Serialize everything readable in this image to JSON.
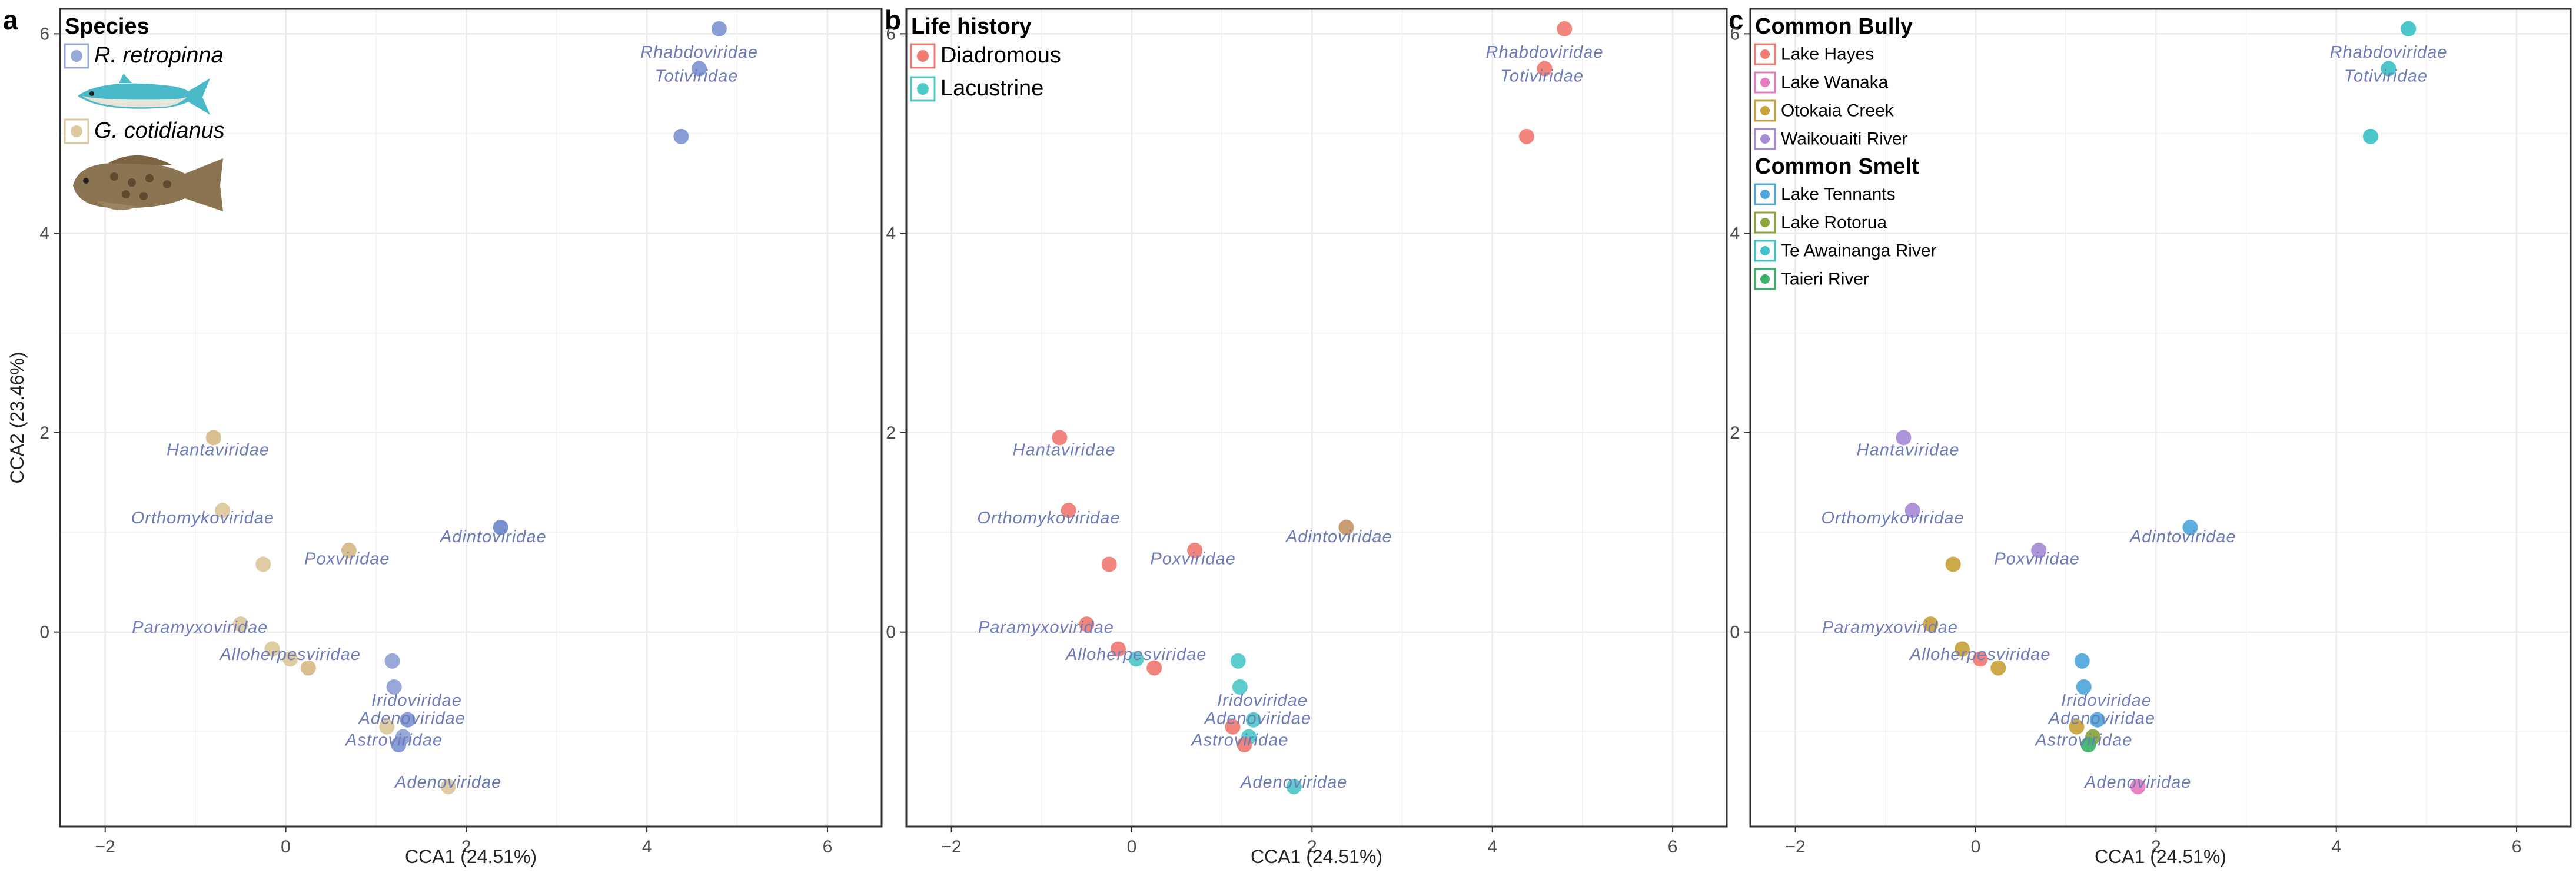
{
  "colors": {
    "label": "#6d7bb8",
    "grid": "#ebebeb",
    "axis_text": "#4d4d4d"
  },
  "panel_letters": [
    "a",
    "b",
    "c"
  ],
  "chart_data": [
    {
      "type": "scatter",
      "panel": "a",
      "xlabel": "CCA1 (24.51%)",
      "ylabel": "CCA2 (23.46%)",
      "xlim": [
        -2.5,
        6.6
      ],
      "ylim": [
        -1.95,
        6.25
      ],
      "xticks": [
        -2,
        0,
        2,
        4,
        6
      ],
      "yticks": [
        0,
        2,
        4,
        6
      ],
      "grid": true,
      "legend": {
        "placement": "top-left",
        "groups": [
          {
            "title": "Species",
            "entries": [
              {
                "label": "R. retropinna",
                "italic": true,
                "color": "#97a9d8",
                "icon": "smelt-fish-icon"
              },
              {
                "label": "G. cotidianus",
                "italic": true,
                "color": "#dcc89a",
                "icon": "bully-fish-icon"
              }
            ]
          }
        ]
      },
      "points": [
        {
          "x": 4.8,
          "y": 6.05,
          "color": "#7f95d3"
        },
        {
          "x": 4.58,
          "y": 5.65,
          "color": "#7f95d3"
        },
        {
          "x": 4.38,
          "y": 4.97,
          "color": "#7f95d3"
        },
        {
          "x": 2.38,
          "y": 1.05,
          "color": "#6f88cc"
        },
        {
          "x": -0.8,
          "y": 1.95,
          "color": "#d6b886"
        },
        {
          "x": -0.7,
          "y": 1.22,
          "color": "#dcc89a"
        },
        {
          "x": -0.25,
          "y": 0.68,
          "color": "#dcc89a"
        },
        {
          "x": 0.7,
          "y": 0.82,
          "color": "#d6b886"
        },
        {
          "x": -0.5,
          "y": 0.08,
          "color": "#dcc89a"
        },
        {
          "x": -0.15,
          "y": -0.17,
          "color": "#dcc89a"
        },
        {
          "x": 0.05,
          "y": -0.27,
          "color": "#dcc89a"
        },
        {
          "x": 0.25,
          "y": -0.36,
          "color": "#d6b886"
        },
        {
          "x": 1.18,
          "y": -0.29,
          "color": "#8fa2d6"
        },
        {
          "x": 1.2,
          "y": -0.55,
          "color": "#8fa2d6"
        },
        {
          "x": 1.35,
          "y": -0.88,
          "color": "#7f95d3"
        },
        {
          "x": 1.12,
          "y": -0.95,
          "color": "#dcc89a"
        },
        {
          "x": 1.3,
          "y": -1.05,
          "color": "#8fa2d6"
        },
        {
          "x": 1.25,
          "y": -1.13,
          "color": "#7f95d3"
        },
        {
          "x": 1.8,
          "y": -1.55,
          "color": "#dcc89a"
        }
      ],
      "labels": [
        {
          "text": "Rhabdoviridae",
          "x": 4.58,
          "y": 5.82
        },
        {
          "text": "Totiviridae",
          "x": 4.55,
          "y": 5.58
        },
        {
          "text": "Hantaviridae",
          "x": -0.75,
          "y": 1.83
        },
        {
          "text": "Adintoviridae",
          "x": 2.3,
          "y": 0.96
        },
        {
          "text": "Orthomykoviridae",
          "x": -0.92,
          "y": 1.15
        },
        {
          "text": "Poxviridae",
          "x": 0.68,
          "y": 0.74
        },
        {
          "text": "Paramyxoviridae",
          "x": -0.95,
          "y": 0.05
        },
        {
          "text": "Alloherpesviridae",
          "x": 0.05,
          "y": -0.22
        },
        {
          "text": "Iridoviridae",
          "x": 1.45,
          "y": -0.68
        },
        {
          "text": "Adenoviridae",
          "x": 1.4,
          "y": -0.86
        },
        {
          "text": "Astroviridae",
          "x": 1.2,
          "y": -1.08
        },
        {
          "text": "Adenoviridae",
          "x": 1.8,
          "y": -1.5
        }
      ]
    },
    {
      "type": "scatter",
      "panel": "b",
      "xlabel": "CCA1 (24.51%)",
      "ylabel": "",
      "xlim": [
        -2.5,
        6.6
      ],
      "ylim": [
        -1.95,
        6.25
      ],
      "xticks": [
        -2,
        0,
        2,
        4,
        6
      ],
      "yticks": [
        0,
        2,
        4,
        6
      ],
      "grid": true,
      "legend": {
        "placement": "top-left",
        "groups": [
          {
            "title": "Life history",
            "entries": [
              {
                "label": "Diadromous",
                "italic": false,
                "color": "#f07b72"
              },
              {
                "label": "Lacustrine",
                "italic": false,
                "color": "#4fc8c8"
              }
            ]
          }
        ]
      },
      "points": [
        {
          "x": 4.8,
          "y": 6.05,
          "color": "#f07b72"
        },
        {
          "x": 4.58,
          "y": 5.65,
          "color": "#f07b72"
        },
        {
          "x": 4.38,
          "y": 4.97,
          "color": "#f07b72"
        },
        {
          "x": 2.38,
          "y": 1.05,
          "color": "#4fc8c8"
        },
        {
          "x": 2.38,
          "y": 1.05,
          "color": "#d49a6a"
        },
        {
          "x": -0.8,
          "y": 1.95,
          "color": "#f07b72"
        },
        {
          "x": -0.7,
          "y": 1.22,
          "color": "#f07b72"
        },
        {
          "x": -0.25,
          "y": 0.68,
          "color": "#f07b72"
        },
        {
          "x": 0.7,
          "y": 0.82,
          "color": "#f07b72"
        },
        {
          "x": -0.5,
          "y": 0.08,
          "color": "#f07b72"
        },
        {
          "x": -0.15,
          "y": -0.17,
          "color": "#f07b72"
        },
        {
          "x": 0.05,
          "y": -0.27,
          "color": "#4fc8c8"
        },
        {
          "x": 0.25,
          "y": -0.36,
          "color": "#f07b72"
        },
        {
          "x": 1.18,
          "y": -0.29,
          "color": "#4fc8c8"
        },
        {
          "x": 1.2,
          "y": -0.55,
          "color": "#4fc8c8"
        },
        {
          "x": 1.35,
          "y": -0.88,
          "color": "#4fc8c8"
        },
        {
          "x": 1.12,
          "y": -0.95,
          "color": "#f07b72"
        },
        {
          "x": 1.3,
          "y": -1.05,
          "color": "#4fc8c8"
        },
        {
          "x": 1.25,
          "y": -1.13,
          "color": "#f07b72"
        },
        {
          "x": 1.8,
          "y": -1.55,
          "color": "#4fc8c8"
        }
      ],
      "labels": [
        {
          "text": "Rhabdoviridae",
          "x": 4.58,
          "y": 5.82
        },
        {
          "text": "Totiviridae",
          "x": 4.55,
          "y": 5.58
        },
        {
          "text": "Hantaviridae",
          "x": -0.75,
          "y": 1.83
        },
        {
          "text": "Adintoviridae",
          "x": 2.3,
          "y": 0.96
        },
        {
          "text": "Orthomykoviridae",
          "x": -0.92,
          "y": 1.15
        },
        {
          "text": "Poxviridae",
          "x": 0.68,
          "y": 0.74
        },
        {
          "text": "Paramyxoviridae",
          "x": -0.95,
          "y": 0.05
        },
        {
          "text": "Alloherpesviridae",
          "x": 0.05,
          "y": -0.22
        },
        {
          "text": "Iridoviridae",
          "x": 1.45,
          "y": -0.68
        },
        {
          "text": "Adenoviridae",
          "x": 1.4,
          "y": -0.86
        },
        {
          "text": "Astroviridae",
          "x": 1.2,
          "y": -1.08
        },
        {
          "text": "Adenoviridae",
          "x": 1.8,
          "y": -1.5
        }
      ]
    },
    {
      "type": "scatter",
      "panel": "c",
      "xlabel": "CCA1 (24.51%)",
      "ylabel": "",
      "xlim": [
        -2.5,
        6.6
      ],
      "ylim": [
        -1.95,
        6.25
      ],
      "xticks": [
        -2,
        0,
        2,
        4,
        6
      ],
      "yticks": [
        0,
        2,
        4,
        6
      ],
      "grid": true,
      "legend": {
        "placement": "top-left",
        "groups": [
          {
            "title": "Common Bully",
            "entries": [
              {
                "label": "Lake Hayes",
                "italic": false,
                "color": "#f07b72"
              },
              {
                "label": "Lake Wanaka",
                "italic": false,
                "color": "#e77bc0"
              },
              {
                "label": "Otokaia Creek",
                "italic": false,
                "color": "#c9a23a"
              },
              {
                "label": "Waikouaiti River",
                "italic": false,
                "color": "#a88bd6"
              }
            ]
          },
          {
            "title": "Common Smelt",
            "entries": [
              {
                "label": "Lake Tennants",
                "italic": false,
                "color": "#4fa6dc"
              },
              {
                "label": "Lake Rotorua",
                "italic": false,
                "color": "#8aa53a"
              },
              {
                "label": "Te Awainanga River",
                "italic": false,
                "color": "#3cc2c8"
              },
              {
                "label": "Taieri River",
                "italic": false,
                "color": "#3ab36a"
              }
            ]
          }
        ]
      },
      "points": [
        {
          "x": 4.8,
          "y": 6.05,
          "color": "#3cc2c8"
        },
        {
          "x": 4.58,
          "y": 5.65,
          "color": "#3cc2c8"
        },
        {
          "x": 4.38,
          "y": 4.97,
          "color": "#3cc2c8"
        },
        {
          "x": 2.38,
          "y": 1.05,
          "color": "#4fa6dc"
        },
        {
          "x": -0.8,
          "y": 1.95,
          "color": "#a88bd6"
        },
        {
          "x": -0.7,
          "y": 1.22,
          "color": "#a88bd6"
        },
        {
          "x": -0.25,
          "y": 0.68,
          "color": "#c9a23a"
        },
        {
          "x": 0.7,
          "y": 0.82,
          "color": "#a88bd6"
        },
        {
          "x": -0.5,
          "y": 0.08,
          "color": "#c9a23a"
        },
        {
          "x": -0.15,
          "y": -0.17,
          "color": "#c9a23a"
        },
        {
          "x": 0.05,
          "y": -0.27,
          "color": "#f07b72"
        },
        {
          "x": 0.25,
          "y": -0.36,
          "color": "#c9a23a"
        },
        {
          "x": 1.18,
          "y": -0.29,
          "color": "#4fa6dc"
        },
        {
          "x": 1.2,
          "y": -0.55,
          "color": "#4fa6dc"
        },
        {
          "x": 1.35,
          "y": -0.88,
          "color": "#4fa6dc"
        },
        {
          "x": 1.12,
          "y": -0.95,
          "color": "#c9a23a"
        },
        {
          "x": 1.3,
          "y": -1.05,
          "color": "#8aa53a"
        },
        {
          "x": 1.25,
          "y": -1.13,
          "color": "#3ab36a"
        },
        {
          "x": 1.8,
          "y": -1.55,
          "color": "#e77bc0"
        }
      ],
      "labels": [
        {
          "text": "Rhabdoviridae",
          "x": 4.58,
          "y": 5.82
        },
        {
          "text": "Totiviridae",
          "x": 4.55,
          "y": 5.58
        },
        {
          "text": "Hantaviridae",
          "x": -0.75,
          "y": 1.83
        },
        {
          "text": "Adintoviridae",
          "x": 2.3,
          "y": 0.96
        },
        {
          "text": "Orthomykoviridae",
          "x": -0.92,
          "y": 1.15
        },
        {
          "text": "Poxviridae",
          "x": 0.68,
          "y": 0.74
        },
        {
          "text": "Paramyxoviridae",
          "x": -0.95,
          "y": 0.05
        },
        {
          "text": "Alloherpesviridae",
          "x": 0.05,
          "y": -0.22
        },
        {
          "text": "Iridoviridae",
          "x": 1.45,
          "y": -0.68
        },
        {
          "text": "Adenoviridae",
          "x": 1.4,
          "y": -0.86
        },
        {
          "text": "Astroviridae",
          "x": 1.2,
          "y": -1.08
        },
        {
          "text": "Adenoviridae",
          "x": 1.8,
          "y": -1.5
        }
      ]
    }
  ]
}
